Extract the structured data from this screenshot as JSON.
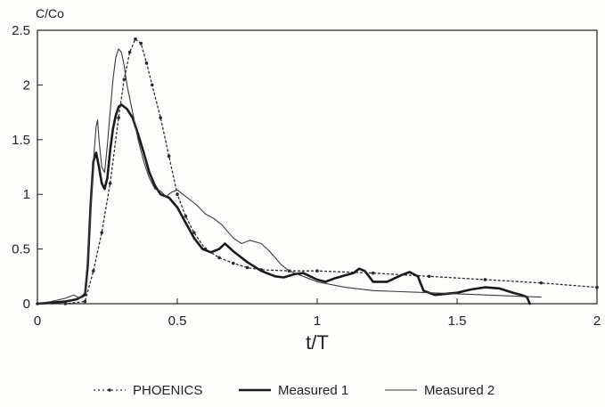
{
  "chart_data": {
    "type": "line",
    "ylabel": "C/Co",
    "xlabel": "t/T",
    "xlim": [
      0,
      2
    ],
    "ylim": [
      0,
      2.5
    ],
    "x_ticks": [
      0,
      0.5,
      1,
      1.5,
      2
    ],
    "x_tick_labels": [
      "0",
      "0.5",
      "1",
      "1.5",
      "2"
    ],
    "y_ticks": [
      0,
      0.5,
      1,
      1.5,
      2,
      2.5
    ],
    "y_tick_labels": [
      "0",
      "0.5",
      "1",
      "1.5",
      "2",
      "2.5"
    ],
    "grid": false,
    "legend_position": "bottom",
    "series": [
      {
        "name": "PHOENICS",
        "style": "dotted-with-markers",
        "color": "#2a2a2a",
        "points": [
          [
            0.0,
            0.0
          ],
          [
            0.1,
            0.0
          ],
          [
            0.17,
            0.02
          ],
          [
            0.2,
            0.3
          ],
          [
            0.23,
            0.65
          ],
          [
            0.26,
            1.1
          ],
          [
            0.29,
            1.7
          ],
          [
            0.31,
            2.05
          ],
          [
            0.33,
            2.3
          ],
          [
            0.35,
            2.42
          ],
          [
            0.37,
            2.38
          ],
          [
            0.39,
            2.2
          ],
          [
            0.41,
            2.0
          ],
          [
            0.44,
            1.7
          ],
          [
            0.47,
            1.35
          ],
          [
            0.5,
            1.0
          ],
          [
            0.53,
            0.8
          ],
          [
            0.56,
            0.65
          ],
          [
            0.6,
            0.5
          ],
          [
            0.65,
            0.42
          ],
          [
            0.7,
            0.37
          ],
          [
            0.75,
            0.33
          ],
          [
            0.8,
            0.31
          ],
          [
            0.9,
            0.3
          ],
          [
            1.0,
            0.3
          ],
          [
            1.2,
            0.28
          ],
          [
            1.4,
            0.25
          ],
          [
            1.6,
            0.22
          ],
          [
            1.8,
            0.19
          ],
          [
            2.0,
            0.15
          ]
        ]
      },
      {
        "name": "Measured 1",
        "style": "thick",
        "color": "#1a1a1a",
        "points": [
          [
            0.0,
            0.0
          ],
          [
            0.05,
            0.01
          ],
          [
            0.1,
            0.02
          ],
          [
            0.14,
            0.04
          ],
          [
            0.17,
            0.08
          ],
          [
            0.18,
            0.35
          ],
          [
            0.19,
            0.9
          ],
          [
            0.2,
            1.3
          ],
          [
            0.21,
            1.38
          ],
          [
            0.22,
            1.25
          ],
          [
            0.23,
            1.1
          ],
          [
            0.24,
            1.05
          ],
          [
            0.25,
            1.15
          ],
          [
            0.26,
            1.4
          ],
          [
            0.27,
            1.6
          ],
          [
            0.28,
            1.72
          ],
          [
            0.29,
            1.8
          ],
          [
            0.3,
            1.82
          ],
          [
            0.32,
            1.78
          ],
          [
            0.34,
            1.7
          ],
          [
            0.36,
            1.55
          ],
          [
            0.38,
            1.38
          ],
          [
            0.4,
            1.2
          ],
          [
            0.42,
            1.08
          ],
          [
            0.44,
            1.0
          ],
          [
            0.47,
            0.97
          ],
          [
            0.5,
            0.88
          ],
          [
            0.53,
            0.74
          ],
          [
            0.56,
            0.6
          ],
          [
            0.59,
            0.5
          ],
          [
            0.62,
            0.47
          ],
          [
            0.65,
            0.5
          ],
          [
            0.67,
            0.55
          ],
          [
            0.7,
            0.48
          ],
          [
            0.75,
            0.38
          ],
          [
            0.8,
            0.3
          ],
          [
            0.85,
            0.25
          ],
          [
            0.88,
            0.24
          ],
          [
            0.92,
            0.27
          ],
          [
            0.95,
            0.28
          ],
          [
            1.0,
            0.22
          ],
          [
            1.03,
            0.2
          ],
          [
            1.06,
            0.23
          ],
          [
            1.1,
            0.26
          ],
          [
            1.13,
            0.28
          ],
          [
            1.15,
            0.32
          ],
          [
            1.17,
            0.3
          ],
          [
            1.2,
            0.2
          ],
          [
            1.25,
            0.2
          ],
          [
            1.3,
            0.26
          ],
          [
            1.33,
            0.29
          ],
          [
            1.36,
            0.25
          ],
          [
            1.38,
            0.12
          ],
          [
            1.42,
            0.08
          ],
          [
            1.46,
            0.09
          ],
          [
            1.5,
            0.1
          ],
          [
            1.55,
            0.13
          ],
          [
            1.6,
            0.15
          ],
          [
            1.65,
            0.14
          ],
          [
            1.7,
            0.1
          ],
          [
            1.73,
            0.08
          ],
          [
            1.75,
            0.06
          ],
          [
            1.76,
            0.0
          ]
        ]
      },
      {
        "name": "Measured 2",
        "style": "thin",
        "color": "#3a3a3a",
        "points": [
          [
            0.0,
            0.0
          ],
          [
            0.05,
            0.02
          ],
          [
            0.1,
            0.05
          ],
          [
            0.13,
            0.08
          ],
          [
            0.15,
            0.05
          ],
          [
            0.17,
            0.1
          ],
          [
            0.18,
            0.4
          ],
          [
            0.19,
            0.85
          ],
          [
            0.2,
            1.3
          ],
          [
            0.21,
            1.62
          ],
          [
            0.215,
            1.68
          ],
          [
            0.22,
            1.5
          ],
          [
            0.23,
            1.25
          ],
          [
            0.24,
            1.2
          ],
          [
            0.25,
            1.45
          ],
          [
            0.26,
            1.75
          ],
          [
            0.27,
            2.05
          ],
          [
            0.28,
            2.25
          ],
          [
            0.29,
            2.33
          ],
          [
            0.3,
            2.3
          ],
          [
            0.31,
            2.18
          ],
          [
            0.32,
            2.0
          ],
          [
            0.34,
            1.75
          ],
          [
            0.36,
            1.5
          ],
          [
            0.38,
            1.3
          ],
          [
            0.4,
            1.15
          ],
          [
            0.42,
            1.05
          ],
          [
            0.44,
            1.03
          ],
          [
            0.46,
            0.98
          ],
          [
            0.48,
            1.02
          ],
          [
            0.5,
            1.04
          ],
          [
            0.52,
            1.0
          ],
          [
            0.54,
            0.96
          ],
          [
            0.57,
            0.9
          ],
          [
            0.6,
            0.82
          ],
          [
            0.63,
            0.78
          ],
          [
            0.66,
            0.72
          ],
          [
            0.7,
            0.6
          ],
          [
            0.73,
            0.55
          ],
          [
            0.76,
            0.58
          ],
          [
            0.8,
            0.55
          ],
          [
            0.83,
            0.48
          ],
          [
            0.87,
            0.36
          ],
          [
            0.9,
            0.3
          ],
          [
            0.95,
            0.25
          ],
          [
            1.0,
            0.2
          ],
          [
            1.1,
            0.15
          ],
          [
            1.2,
            0.12
          ],
          [
            1.3,
            0.11
          ],
          [
            1.4,
            0.1
          ],
          [
            1.5,
            0.09
          ],
          [
            1.6,
            0.08
          ],
          [
            1.7,
            0.07
          ],
          [
            1.8,
            0.06
          ]
        ]
      }
    ]
  }
}
